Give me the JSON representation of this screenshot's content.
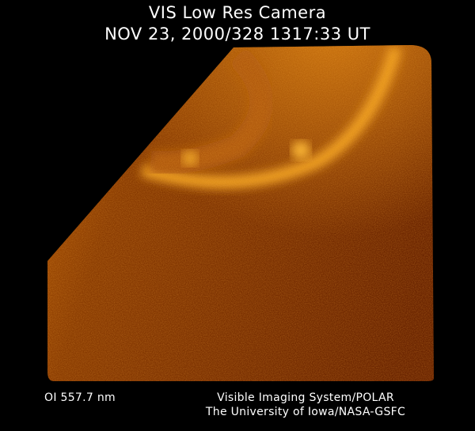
{
  "header": {
    "title": "VIS Low Res Camera",
    "timestamp": "NOV 23, 2000/328 1317:33 UT"
  },
  "footer": {
    "wavelength": "OI  557.7 nm",
    "instrument": "Visible Imaging System/POLAR",
    "institution": "The University of Iowa/NASA-GSFC"
  },
  "image": {
    "subject": "auroral-oval",
    "palette": [
      "#000000",
      "#5a1e00",
      "#a04a00",
      "#e08a10",
      "#ffc040"
    ]
  }
}
